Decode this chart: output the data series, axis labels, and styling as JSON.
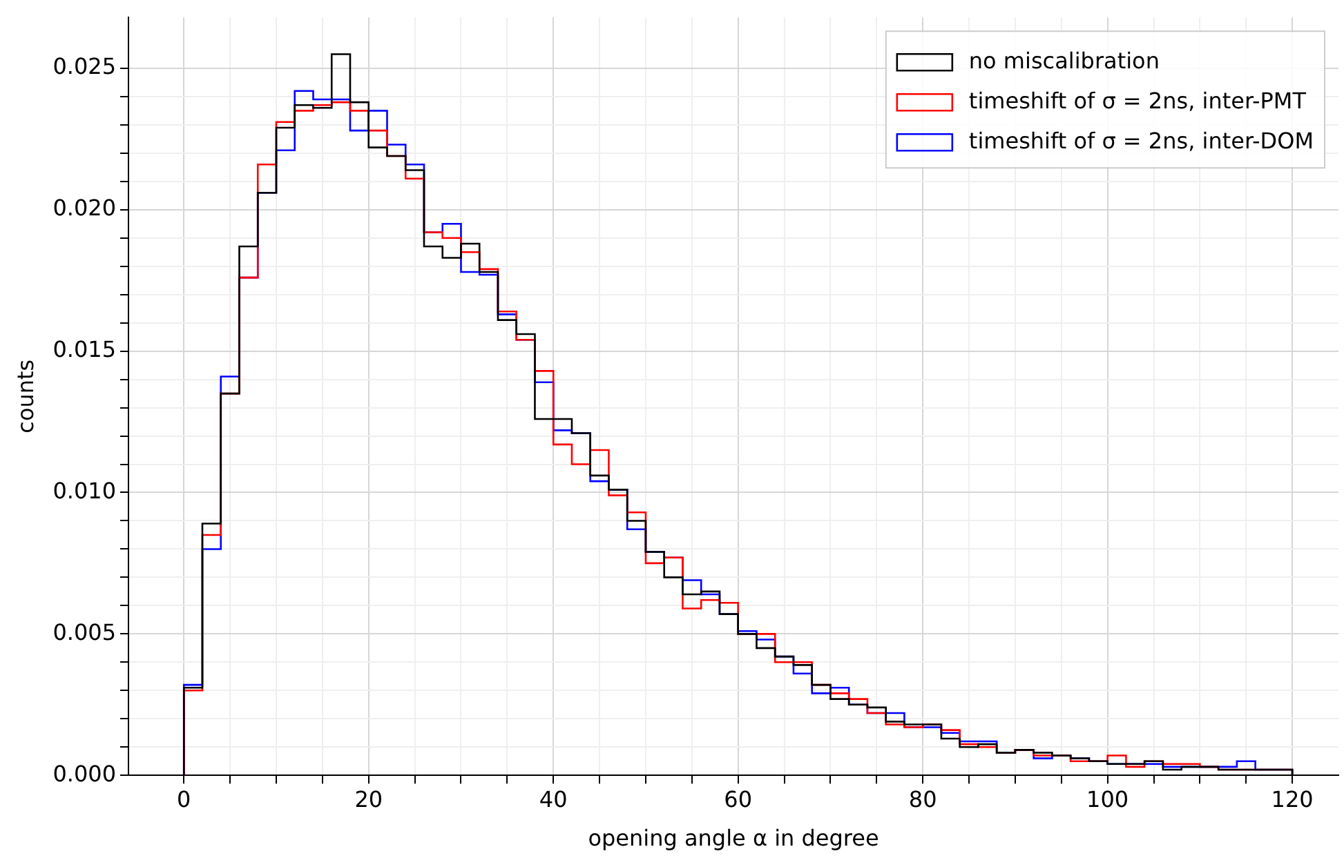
{
  "chart_data": {
    "type": "histogram",
    "xlabel": "opening angle α in degree",
    "ylabel": "counts",
    "bins": [
      0,
      2,
      4,
      6,
      8,
      10,
      12,
      14,
      16,
      18,
      20,
      22,
      24,
      26,
      28,
      30,
      32,
      34,
      36,
      38,
      40,
      42,
      44,
      46,
      48,
      50,
      52,
      54,
      56,
      58,
      60,
      62,
      64,
      66,
      68,
      70,
      72,
      74,
      76,
      78,
      80,
      82,
      84,
      86,
      88,
      90,
      92,
      94,
      96,
      98,
      100,
      102,
      104,
      106,
      108,
      110,
      112,
      114,
      116,
      118,
      120
    ],
    "series": [
      {
        "name": "no miscalibration",
        "color": "#000000",
        "values": [
          0.0031,
          0.0089,
          0.0135,
          0.0187,
          0.0206,
          0.0229,
          0.0237,
          0.0236,
          0.0255,
          0.0238,
          0.0222,
          0.0219,
          0.0214,
          0.0187,
          0.0183,
          0.0188,
          0.0178,
          0.0161,
          0.0156,
          0.0126,
          0.0126,
          0.0121,
          0.0106,
          0.0101,
          0.009,
          0.0079,
          0.007,
          0.0064,
          0.0065,
          0.0057,
          0.005,
          0.0045,
          0.0042,
          0.0039,
          0.0032,
          0.0027,
          0.0025,
          0.0024,
          0.0019,
          0.0018,
          0.0018,
          0.0013,
          0.001,
          0.0011,
          0.0008,
          0.0009,
          0.0008,
          0.0007,
          0.0006,
          0.0005,
          0.0004,
          0.0004,
          0.0005,
          0.0002,
          0.0003,
          0.0003,
          0.0002,
          0.0002,
          0.0002,
          0.0002
        ]
      },
      {
        "name": "timeshift of σ = 2ns, inter-PMT",
        "color": "#ff0000",
        "values": [
          0.003,
          0.0085,
          0.0135,
          0.0176,
          0.0216,
          0.0231,
          0.0235,
          0.0237,
          0.0238,
          0.0235,
          0.0228,
          0.0219,
          0.0211,
          0.0192,
          0.019,
          0.0185,
          0.0179,
          0.0164,
          0.0154,
          0.0143,
          0.0117,
          0.011,
          0.0115,
          0.0099,
          0.0093,
          0.0075,
          0.0077,
          0.0059,
          0.0062,
          0.0061,
          0.005,
          0.005,
          0.004,
          0.004,
          0.0032,
          0.0029,
          0.0027,
          0.0022,
          0.0018,
          0.0017,
          0.0018,
          0.0016,
          0.0011,
          0.001,
          0.0008,
          0.0009,
          0.0007,
          0.0007,
          0.0005,
          0.0005,
          0.0007,
          0.0003,
          0.0005,
          0.0004,
          0.0004,
          0.0003,
          0.0002,
          0.0002,
          0.0002,
          0.0002
        ]
      },
      {
        "name": "timeshift of σ = 2ns, inter-DOM",
        "color": "#0000ff",
        "values": [
          0.0032,
          0.008,
          0.0141,
          0.0176,
          0.0206,
          0.0221,
          0.0242,
          0.0239,
          0.0239,
          0.0228,
          0.0235,
          0.0223,
          0.0216,
          0.0192,
          0.0195,
          0.0178,
          0.0177,
          0.0163,
          0.0154,
          0.0139,
          0.0122,
          0.0121,
          0.0104,
          0.0101,
          0.0087,
          0.0079,
          0.0077,
          0.0069,
          0.0064,
          0.0057,
          0.0051,
          0.0048,
          0.0042,
          0.0036,
          0.0029,
          0.0031,
          0.0025,
          0.0022,
          0.0022,
          0.0017,
          0.0017,
          0.0015,
          0.0012,
          0.0012,
          0.0008,
          0.0009,
          0.0006,
          0.0007,
          0.0006,
          0.0005,
          0.0004,
          0.0004,
          0.0004,
          0.0003,
          0.0003,
          0.0003,
          0.0003,
          0.0005,
          0.0002,
          0.0002
        ]
      }
    ],
    "xlim": [
      -6,
      125
    ],
    "xticks": [
      0,
      20,
      40,
      60,
      80,
      100,
      120
    ],
    "ylim": [
      0,
      0.0268
    ],
    "yticks": [
      {
        "value": 0,
        "label": "0.000"
      },
      {
        "value": 0.005,
        "label": "0.005"
      },
      {
        "value": 0.01,
        "label": "0.010"
      },
      {
        "value": 0.015,
        "label": "0.015"
      },
      {
        "value": 0.02,
        "label": "0.020"
      },
      {
        "value": 0.025,
        "label": "0.025"
      }
    ],
    "grid": true,
    "legend": "top right"
  }
}
